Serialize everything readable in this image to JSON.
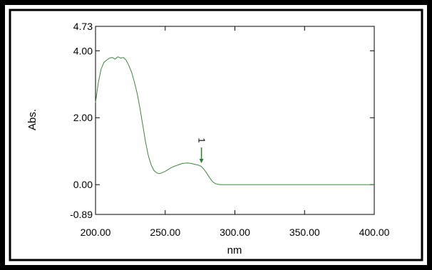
{
  "chart_data": {
    "type": "line",
    "xlabel": "nm",
    "ylabel": "Abs.",
    "xlim": [
      200,
      400
    ],
    "ylim": [
      -0.89,
      4.73
    ],
    "x_ticks": [
      "200.00",
      "250.00",
      "300.00",
      "350.00",
      "400.00"
    ],
    "y_ticks": [
      "4.73",
      "4.00",
      "2.00",
      "0.00",
      "-0.89"
    ],
    "line_color": "#3a8a3a",
    "annotation": {
      "label": "1",
      "x": 276,
      "y": 0.6,
      "color": "#2e7d2e"
    },
    "series": [
      {
        "x": [
          200,
          202,
          204,
          206,
          208,
          210,
          212,
          214,
          216,
          218,
          220,
          222,
          224,
          226,
          228,
          230,
          232,
          234,
          236,
          238,
          240,
          242,
          244,
          246,
          248,
          250,
          252,
          254,
          256,
          258,
          260,
          262,
          264,
          266,
          268,
          270,
          272,
          274,
          276,
          278,
          280,
          282,
          284,
          286,
          288,
          290,
          295,
          300,
          320,
          350,
          380,
          400
        ],
        "y": [
          2.45,
          3.05,
          3.45,
          3.65,
          3.72,
          3.78,
          3.8,
          3.75,
          3.82,
          3.78,
          3.8,
          3.72,
          3.55,
          3.35,
          3.05,
          2.7,
          2.25,
          1.75,
          1.25,
          0.85,
          0.58,
          0.42,
          0.35,
          0.33,
          0.36,
          0.4,
          0.45,
          0.5,
          0.54,
          0.57,
          0.6,
          0.63,
          0.64,
          0.65,
          0.64,
          0.62,
          0.6,
          0.58,
          0.54,
          0.45,
          0.33,
          0.2,
          0.09,
          0.03,
          0.01,
          0.0,
          0.0,
          0.0,
          0.0,
          0.0,
          0.0,
          0.0
        ]
      }
    ]
  }
}
